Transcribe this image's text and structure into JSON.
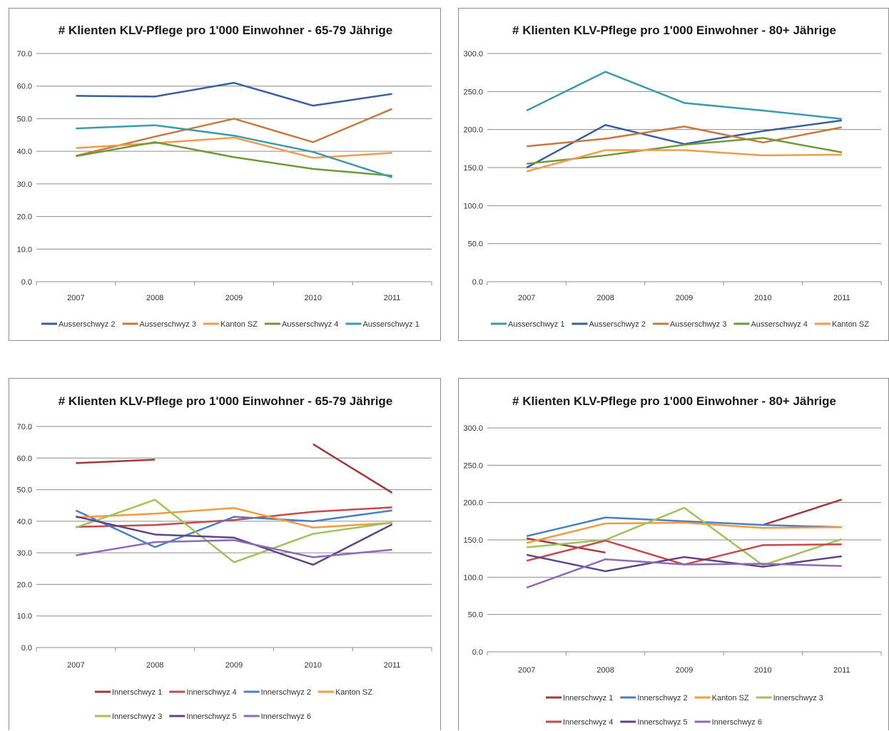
{
  "chart_data": [
    {
      "type": "line",
      "title": "# Klienten KLV-Pflege  pro 1'000 Einwohner - 65-79 Jährige",
      "x": [
        "2007",
        "2008",
        "2009",
        "2010",
        "2011"
      ],
      "ylim": [
        0,
        70
      ],
      "yticks": [
        "0.0",
        "10.0",
        "20.0",
        "30.0",
        "40.0",
        "50.0",
        "60.0",
        "70.0"
      ],
      "grid": true,
      "legend": "bottom",
      "series": [
        {
          "name": "Ausserschwyz 2",
          "color": "#3a5f9d",
          "values": [
            57.0,
            56.8,
            61.0,
            54.0,
            57.6
          ]
        },
        {
          "name": "Ausserschwyz 3",
          "color": "#c87a3e",
          "values": [
            38.6,
            44.5,
            50.0,
            42.8,
            53.0
          ]
        },
        {
          "name": "Kanton SZ",
          "color": "#f59a4b",
          "values": [
            41.0,
            42.5,
            44.2,
            38.0,
            39.5
          ]
        },
        {
          "name": "Ausserschwyz 4",
          "color": "#6e9a3b",
          "values": [
            38.5,
            42.8,
            38.2,
            34.6,
            32.5
          ]
        },
        {
          "name": "Ausserschwyz 1",
          "color": "#3b9aad",
          "values": [
            47.0,
            48.0,
            44.8,
            39.8,
            32.0
          ]
        }
      ]
    },
    {
      "type": "line",
      "title": "# Klienten KLV-Pflege pro 1'000 Einwohner  - 80+ Jährige",
      "x": [
        "2007",
        "2008",
        "2009",
        "2010",
        "2011"
      ],
      "ylim": [
        0,
        300
      ],
      "yticks": [
        "0.0",
        "50.0",
        "100.0",
        "150.0",
        "200.0",
        "250.0",
        "300.0"
      ],
      "grid": true,
      "legend": "bottom",
      "series": [
        {
          "name": "Ausserschwyz 1",
          "color": "#3b9aad",
          "values": [
            225,
            276,
            235,
            225,
            214
          ]
        },
        {
          "name": "Ausserschwyz 2",
          "color": "#3a5f9d",
          "values": [
            150,
            206,
            181,
            198,
            212
          ]
        },
        {
          "name": "Ausserschwyz 3",
          "color": "#c87a3e",
          "values": [
            178,
            188,
            204,
            183,
            203
          ]
        },
        {
          "name": "Ausserschwyz 4",
          "color": "#6e9a3b",
          "values": [
            155,
            166,
            180,
            189,
            170
          ]
        },
        {
          "name": "Kanton SZ",
          "color": "#f59a4b",
          "values": [
            145,
            173,
            173,
            166,
            167
          ]
        }
      ]
    },
    {
      "type": "line",
      "title": "# Klienten KLV-Pflege  pro 1'000 Einwohner - 65-79 Jährige",
      "x": [
        "2007",
        "2008",
        "2009",
        "2010",
        "2011"
      ],
      "ylim": [
        0,
        70
      ],
      "yticks": [
        "0.0",
        "10.0",
        "20.0",
        "30.0",
        "40.0",
        "50.0",
        "60.0",
        "70.0"
      ],
      "grid": true,
      "legend": "bottom",
      "series": [
        {
          "name": "Innerschwyz 1",
          "color": "#a33a3a",
          "values": [
            58.4,
            59.5,
            null,
            64.4,
            49.0
          ]
        },
        {
          "name": "Innerschwyz 4",
          "color": "#c9484b",
          "values": [
            38.2,
            38.8,
            40.4,
            43.0,
            44.4
          ]
        },
        {
          "name": "Innerschwyz 2",
          "color": "#4a7fc8",
          "values": [
            43.4,
            31.8,
            41.4,
            40.0,
            43.4
          ]
        },
        {
          "name": "Kanton SZ",
          "color": "#f59a3c",
          "values": [
            41.2,
            42.4,
            44.2,
            38.0,
            39.5
          ]
        },
        {
          "name": "Innerschwyz 3",
          "color": "#9fc25a",
          "values": [
            38.0,
            46.8,
            27.0,
            36.0,
            39.6
          ]
        },
        {
          "name": "Innerschwyz 5",
          "color": "#5e4586",
          "values": [
            41.5,
            35.8,
            34.8,
            26.2,
            39.0
          ]
        },
        {
          "name": "Innerschwyz 6",
          "color": "#8b6bb8",
          "values": [
            29.2,
            33.4,
            34.0,
            28.6,
            31.0
          ]
        }
      ]
    },
    {
      "type": "line",
      "title": "# Klienten KLV-Pflege pro 1'000 Einwohner  - 80+ Jährige",
      "x": [
        "2007",
        "2008",
        "2009",
        "2010",
        "2011"
      ],
      "ylim": [
        0,
        300
      ],
      "yticks": [
        "0.0",
        "50.0",
        "100.0",
        "150.0",
        "200.0",
        "250.0",
        "300.0"
      ],
      "grid": true,
      "legend": "bottom",
      "series": [
        {
          "name": "Innerschwyz 1",
          "color": "#a33a3a",
          "values": [
            152,
            133,
            null,
            170,
            204
          ]
        },
        {
          "name": "Innerschwyz 2",
          "color": "#4a7fc8",
          "values": [
            155,
            180,
            175,
            170,
            167
          ]
        },
        {
          "name": "Kanton SZ",
          "color": "#f59a3c",
          "values": [
            146,
            172,
            173,
            166,
            167
          ]
        },
        {
          "name": "Innerschwyz 3",
          "color": "#9fc25a",
          "values": [
            140,
            150,
            193,
            116,
            151
          ]
        },
        {
          "name": "Innerschwyz 4",
          "color": "#c9484b",
          "values": [
            122,
            149,
            117,
            143,
            144
          ]
        },
        {
          "name": "Innerschwyz 5",
          "color": "#5e4586",
          "values": [
            130,
            108,
            127,
            114,
            128
          ]
        },
        {
          "name": "Innerschwyz 6",
          "color": "#8b6bb8",
          "values": [
            86,
            124,
            117,
            118,
            115
          ]
        }
      ]
    }
  ]
}
